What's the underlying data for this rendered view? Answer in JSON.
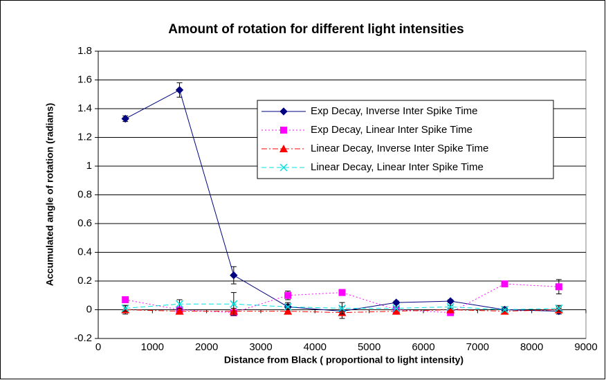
{
  "chart_data": {
    "type": "line",
    "title": "Amount of rotation for different light intensities",
    "x_label": "Distance from Black ( proportional to light intensity)",
    "y_label": "Accumulated angle of rotation (radians)",
    "x": [
      500,
      1500,
      2500,
      3500,
      4500,
      5500,
      6500,
      7500,
      8500
    ],
    "series": [
      {
        "name": "Exp Decay, Inverse Inter Spike Time",
        "color": "#000080",
        "marker": "diamond",
        "dash": "solid",
        "values": [
          1.33,
          1.53,
          0.24,
          0.02,
          -0.01,
          0.05,
          0.06,
          0.0,
          -0.01
        ],
        "errors": [
          0.02,
          0.05,
          0.06,
          0.03,
          0.03,
          0.01,
          0.01,
          0.02,
          0.02
        ]
      },
      {
        "name": "Exp Decay, Linear Inter Spike Time",
        "color": "#ff00ff",
        "marker": "square",
        "dash": "dotted",
        "values": [
          0.07,
          0.0,
          -0.02,
          0.1,
          0.12,
          0.0,
          -0.02,
          0.18,
          0.16
        ],
        "errors": [
          0.02,
          0.01,
          0.02,
          0.03,
          0.02,
          0.02,
          0.01,
          0.02,
          0.05
        ]
      },
      {
        "name": "Linear Decay, Inverse Inter Spike Time",
        "color": "#ff0000",
        "marker": "triangle",
        "dash": "dashdot",
        "values": [
          0.0,
          -0.01,
          -0.01,
          -0.01,
          -0.02,
          -0.01,
          0.0,
          -0.01,
          0.0
        ],
        "errors": [
          0.03,
          0.01,
          0.02,
          0.02,
          0.04,
          0.01,
          0.01,
          0.02,
          0.02
        ]
      },
      {
        "name": "Linear Decay, Linear Inter Spike Time",
        "color": "#00e0e0",
        "marker": "x",
        "dash": "dashed",
        "values": [
          0.01,
          0.04,
          0.04,
          0.02,
          0.01,
          0.01,
          0.02,
          0.0,
          0.01
        ],
        "errors": [
          0.02,
          0.03,
          0.08,
          0.02,
          0.04,
          0.01,
          0.01,
          0.01,
          0.02
        ]
      }
    ],
    "xlim": [
      0,
      9000
    ],
    "xticks": [
      0,
      1000,
      2000,
      3000,
      4000,
      5000,
      6000,
      7000,
      8000,
      9000
    ],
    "ylim": [
      -0.2,
      1.8
    ],
    "yticks": [
      -0.2,
      0,
      0.2,
      0.4,
      0.6,
      0.8,
      1,
      1.2,
      1.4,
      1.6,
      1.8
    ],
    "grid": true,
    "legend": "upper right"
  }
}
